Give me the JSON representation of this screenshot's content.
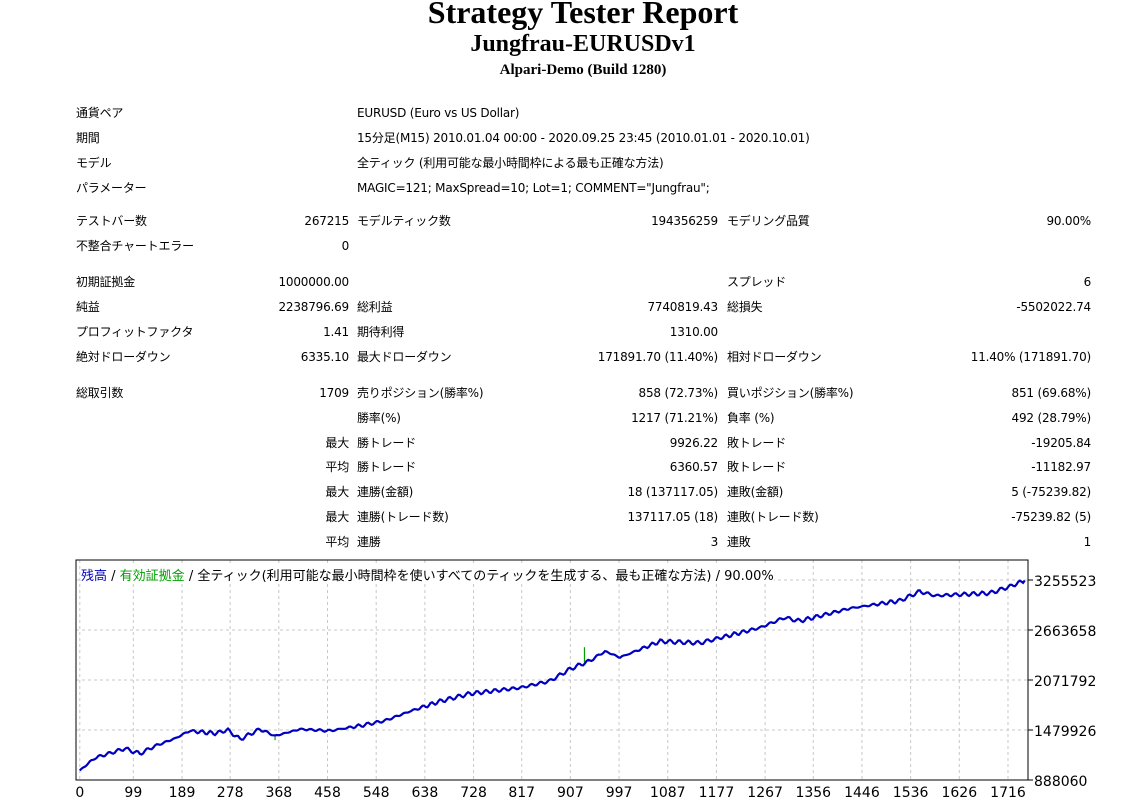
{
  "header": {
    "title": "Strategy Tester Report",
    "expert": "Jungfrau-EURUSDv1",
    "server": "Alpari-Demo (Build 1280)"
  },
  "info": [
    {
      "label": "通貨ペア",
      "value": "EURUSD (Euro vs US Dollar)"
    },
    {
      "label": "期間",
      "value": "15分足(M15) 2010.01.04 00:00 - 2020.09.25 23:45 (2010.01.01 - 2020.10.01)"
    },
    {
      "label": "モデル",
      "value": "全ティック (利用可能な最小時間枠による最も正確な方法)"
    },
    {
      "label": "パラメーター",
      "value": "MAGIC=121; MaxSpread=10; Lot=1; COMMENT=\"Jungfrau\";"
    }
  ],
  "stats": [
    [
      "テストバー数",
      "267215",
      "モデルティック数",
      "194356259",
      "モデリング品質",
      "90.00%"
    ],
    [
      "不整合チャートエラー",
      "0",
      "",
      "",
      "",
      ""
    ],
    [
      "初期証拠金",
      "1000000.00",
      "",
      "",
      "スプレッド",
      "6"
    ],
    [
      "純益",
      "2238796.69",
      "総利益",
      "7740819.43",
      "総損失",
      "-5502022.74"
    ],
    [
      "プロフィットファクタ",
      "1.41",
      "期待利得",
      "1310.00",
      "",
      ""
    ],
    [
      "絶対ドローダウン",
      "6335.10",
      "最大ドローダウン",
      "171891.70 (11.40%)",
      "相対ドローダウン",
      "11.40% (171891.70)"
    ],
    [
      "総取引数",
      "1709",
      "売りポジション(勝率%)",
      "858 (72.73%)",
      "買いポジション(勝率%)",
      "851 (69.68%)"
    ],
    [
      "",
      "",
      "勝率(%)",
      "1217 (71.21%)",
      "負率 (%)",
      "492 (28.79%)"
    ],
    [
      "",
      "最大",
      "勝トレード",
      "9926.22",
      "敗トレード",
      "-19205.84"
    ],
    [
      "",
      "平均",
      "勝トレード",
      "6360.57",
      "敗トレード",
      "-11182.97"
    ],
    [
      "",
      "最大",
      "連勝(金額)",
      "18 (137117.05)",
      "連敗(金額)",
      "5 (-75239.82)"
    ],
    [
      "",
      "最大",
      "連勝(トレード数)",
      "137117.05 (18)",
      "連敗(トレード数)",
      "-75239.82 (5)"
    ],
    [
      "",
      "平均",
      "連勝",
      "3",
      "連敗",
      "1"
    ]
  ],
  "chart_legend": {
    "balance": "残高",
    "sep1": " / ",
    "equity": "有効証拠金",
    "sep2": " / ",
    "desc": "全ティック(利用可能な最小時間枠を使いすべてのティックを生成する、最も正確な方法) / 90.00%"
  },
  "colors": {
    "balance": "#0000c0",
    "equity": "#00a000",
    "grid": "#c8c8c8"
  },
  "chart_data": {
    "type": "line",
    "title": "残高 / 有効証拠金",
    "xlabel": "",
    "ylabel": "",
    "xlim": [
      -7,
      1753
    ],
    "ylim": [
      888060,
      3492270
    ],
    "x_ticks": [
      0,
      99,
      189,
      278,
      368,
      458,
      548,
      638,
      728,
      817,
      907,
      997,
      1087,
      1177,
      1267,
      1356,
      1446,
      1536,
      1626,
      1716
    ],
    "y_ticks": [
      888060,
      1479926,
      2071792,
      2663658,
      3255523
    ],
    "series": [
      {
        "name": "残高",
        "x": [
          0,
          28,
          83,
          111,
          139,
          176,
          203,
          250,
          274,
          296,
          333,
          361,
          407,
          462,
          518,
          564,
          610,
          666,
          721,
          814,
          869,
          906,
          943,
          971,
          999,
          1073,
          1146,
          1183,
          1257,
          1303,
          1331,
          1424,
          1516,
          1553,
          1581,
          1683,
          1720,
          1747
        ],
        "y": [
          1000000,
          1150000,
          1260000,
          1200000,
          1290000,
          1380000,
          1470000,
          1440000,
          1480000,
          1370000,
          1490000,
          1410000,
          1490000,
          1470000,
          1530000,
          1590000,
          1700000,
          1820000,
          1910000,
          1980000,
          2060000,
          2200000,
          2300000,
          2410000,
          2340000,
          2530000,
          2510000,
          2570000,
          2690000,
          2810000,
          2770000,
          2920000,
          3010000,
          3120000,
          3070000,
          3100000,
          3180000,
          3250000
        ]
      }
    ],
    "equity_spikes": [
      {
        "x": 361,
        "y": 1360000
      },
      {
        "x": 933,
        "y": 2460000
      }
    ]
  }
}
